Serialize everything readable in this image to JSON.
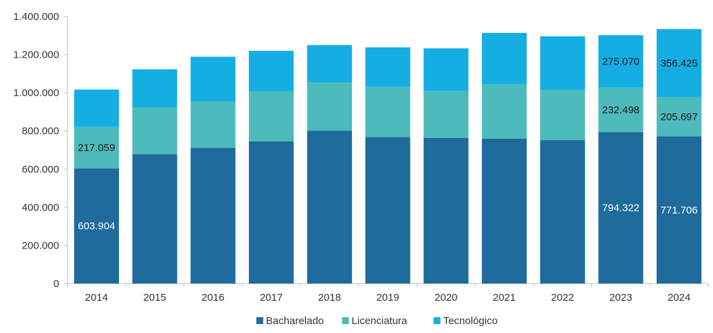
{
  "chart_data": {
    "type": "bar",
    "stacked": true,
    "title": "",
    "xlabel": "",
    "ylabel": "",
    "categories": [
      "2014",
      "2015",
      "2016",
      "2017",
      "2018",
      "2019",
      "2020",
      "2021",
      "2022",
      "2023",
      "2024"
    ],
    "series": [
      {
        "name": "Bacharelado",
        "color": "#1f6b9c",
        "values": [
          603904,
          678000,
          712000,
          746000,
          802000,
          768000,
          763000,
          760000,
          752000,
          794322,
          771706
        ]
      },
      {
        "name": "Licenciatura",
        "color": "#4dbbbb",
        "values": [
          217059,
          245000,
          242000,
          262000,
          252000,
          262000,
          247000,
          285000,
          263000,
          232498,
          205697
        ]
      },
      {
        "name": "Tecnológico",
        "color": "#14aee3",
        "values": [
          196000,
          200000,
          235000,
          212000,
          196000,
          208000,
          223000,
          269000,
          281000,
          275070,
          356425
        ]
      }
    ],
    "data_labels": [
      {
        "category": "2014",
        "series": "Bacharelado",
        "text": "603.904",
        "color": "#ffffff"
      },
      {
        "category": "2014",
        "series": "Licenciatura",
        "text": "217.059",
        "color": "#1a1a1a"
      },
      {
        "category": "2023",
        "series": "Bacharelado",
        "text": "794.322",
        "color": "#ffffff"
      },
      {
        "category": "2023",
        "series": "Licenciatura",
        "text": "232.498",
        "color": "#1a1a1a"
      },
      {
        "category": "2023",
        "series": "Tecnológico",
        "text": "275.070",
        "color": "#1a1a1a"
      },
      {
        "category": "2024",
        "series": "Bacharelado",
        "text": "771.706",
        "color": "#ffffff"
      },
      {
        "category": "2024",
        "series": "Licenciatura",
        "text": "205.697",
        "color": "#1a1a1a"
      },
      {
        "category": "2024",
        "series": "Tecnológico",
        "text": "356.425",
        "color": "#1a1a1a"
      }
    ],
    "y_ticks": [
      0,
      200000,
      400000,
      600000,
      800000,
      1000000,
      1200000,
      1400000
    ],
    "y_tick_labels": [
      "0",
      "200.000",
      "400.000",
      "600.000",
      "800.000",
      "1.000.000",
      "1.200.000",
      "1.400.000"
    ],
    "ylim": [
      0,
      1400000
    ],
    "grid": false,
    "legend": {
      "position": "bottom",
      "entries": [
        "Bacharelado",
        "Licenciatura",
        "Tecnológico"
      ]
    }
  }
}
